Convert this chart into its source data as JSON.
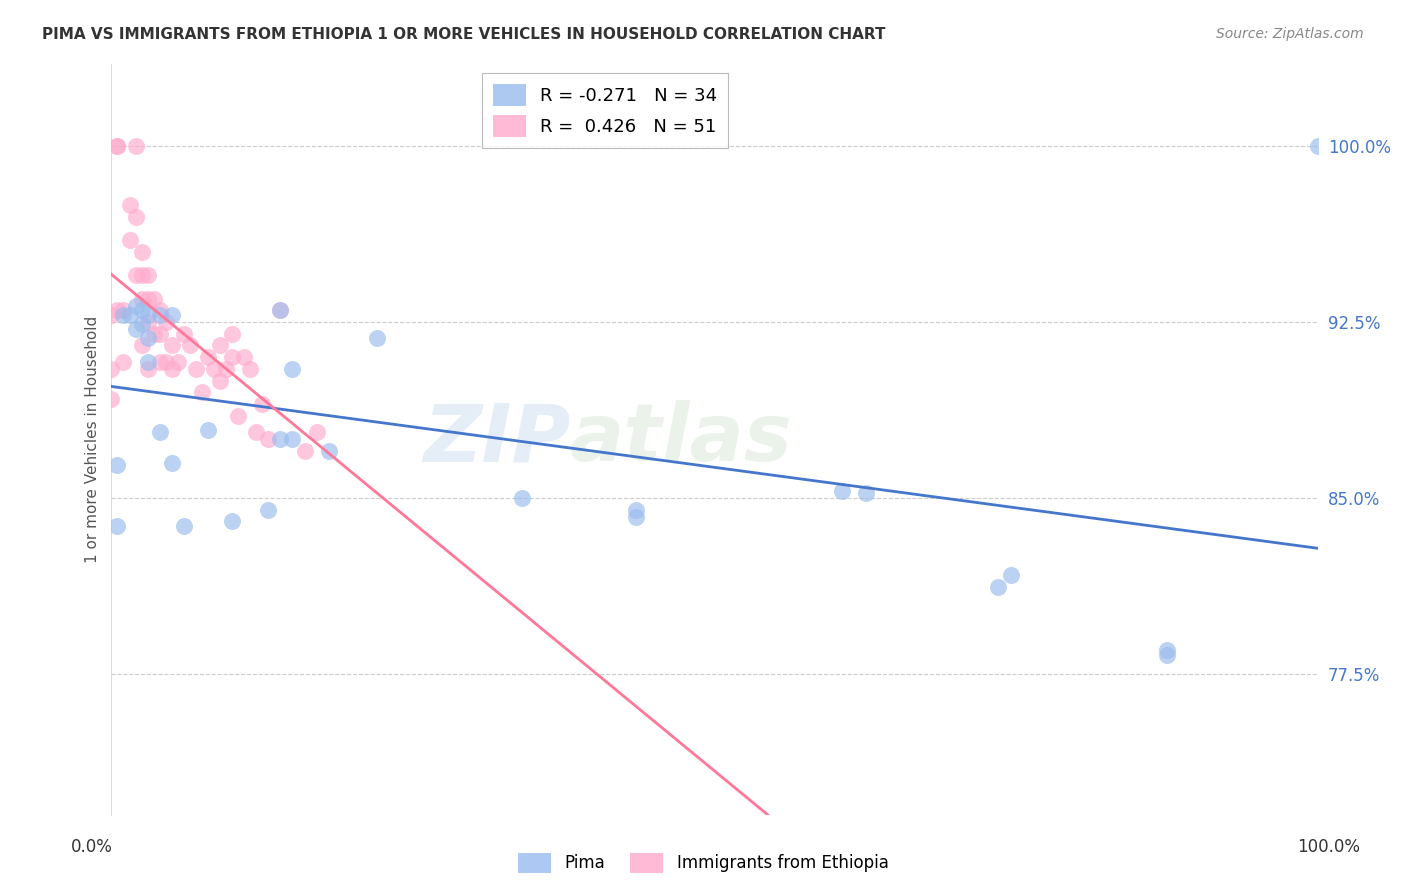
{
  "title": "PIMA VS IMMIGRANTS FROM ETHIOPIA 1 OR MORE VEHICLES IN HOUSEHOLD CORRELATION CHART",
  "source": "Source: ZipAtlas.com",
  "ylabel": "1 or more Vehicles in Household",
  "xlim": [
    0.0,
    1.0
  ],
  "ylim": [
    0.715,
    1.035
  ],
  "yticks": [
    0.775,
    0.85,
    0.925,
    1.0
  ],
  "ytick_labels": [
    "77.5%",
    "85.0%",
    "92.5%",
    "100.0%"
  ],
  "legend_blue_r": "-0.271",
  "legend_blue_n": "34",
  "legend_pink_r": "0.426",
  "legend_pink_n": "51",
  "blue_color": "#99BBEE",
  "pink_color": "#FFAACC",
  "blue_line_color": "#4477CC",
  "pink_line_color": "#FF7799",
  "watermark_zip": "ZIP",
  "watermark_atlas": "atlas",
  "blue_scatter_x": [
    0.005,
    0.005,
    0.01,
    0.015,
    0.02,
    0.02,
    0.025,
    0.025,
    0.03,
    0.03,
    0.03,
    0.04,
    0.04,
    0.05,
    0.05,
    0.06,
    0.08,
    0.1,
    0.13,
    0.14,
    0.14,
    0.15,
    0.15,
    0.18,
    0.22,
    0.34,
    0.435,
    0.435,
    0.605,
    0.625,
    0.735,
    0.745,
    0.875,
    0.875,
    1.0
  ],
  "blue_scatter_y": [
    0.864,
    0.838,
    0.928,
    0.928,
    0.932,
    0.922,
    0.93,
    0.924,
    0.928,
    0.918,
    0.908,
    0.928,
    0.878,
    0.928,
    0.865,
    0.838,
    0.879,
    0.84,
    0.845,
    0.93,
    0.875,
    0.905,
    0.875,
    0.87,
    0.918,
    0.85,
    0.842,
    0.845,
    0.853,
    0.852,
    0.812,
    0.817,
    0.785,
    0.783,
    1.0
  ],
  "pink_scatter_x": [
    0.0,
    0.0,
    0.0,
    0.005,
    0.005,
    0.005,
    0.01,
    0.01,
    0.015,
    0.015,
    0.02,
    0.02,
    0.02,
    0.025,
    0.025,
    0.025,
    0.025,
    0.03,
    0.03,
    0.03,
    0.03,
    0.035,
    0.035,
    0.04,
    0.04,
    0.04,
    0.045,
    0.045,
    0.05,
    0.05,
    0.055,
    0.06,
    0.065,
    0.07,
    0.075,
    0.08,
    0.085,
    0.09,
    0.09,
    0.095,
    0.1,
    0.1,
    0.105,
    0.11,
    0.115,
    0.12,
    0.125,
    0.13,
    0.14,
    0.16,
    0.17
  ],
  "pink_scatter_y": [
    0.928,
    0.905,
    0.892,
    1.0,
    1.0,
    0.93,
    0.93,
    0.908,
    0.975,
    0.96,
    1.0,
    0.97,
    0.945,
    0.955,
    0.945,
    0.935,
    0.915,
    0.945,
    0.935,
    0.925,
    0.905,
    0.935,
    0.92,
    0.93,
    0.92,
    0.908,
    0.925,
    0.908,
    0.915,
    0.905,
    0.908,
    0.92,
    0.915,
    0.905,
    0.895,
    0.91,
    0.905,
    0.915,
    0.9,
    0.905,
    0.92,
    0.91,
    0.885,
    0.91,
    0.905,
    0.878,
    0.89,
    0.875,
    0.93,
    0.87,
    0.878
  ]
}
